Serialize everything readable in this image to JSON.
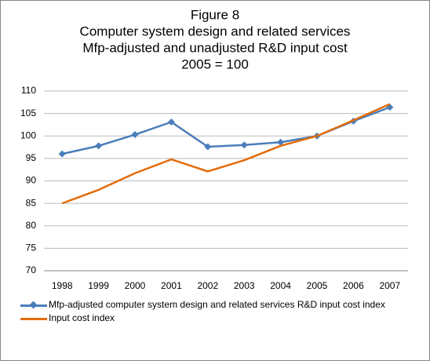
{
  "chart_data": {
    "type": "line",
    "title": [
      "Figure 8",
      "Computer system design and related services",
      "Mfp-adjusted and unadjusted R&D input cost",
      "2005 = 100"
    ],
    "categories": [
      "1998",
      "1999",
      "2000",
      "2001",
      "2002",
      "2003",
      "2004",
      "2005",
      "2006",
      "2007"
    ],
    "series": [
      {
        "name": "Mfp-adjusted computer system design and related services  R&D input cost index",
        "color": "#4a7ebb",
        "marker": "diamond",
        "values": [
          96,
          97.8,
          100.3,
          103.1,
          97.6,
          98,
          98.6,
          100,
          103.3,
          106.4
        ]
      },
      {
        "name": "Input cost index",
        "color": "#e46c0a",
        "values": [
          85,
          88,
          91.7,
          94.8,
          92.1,
          94.6,
          97.8,
          100,
          103.5,
          107.1
        ]
      }
    ],
    "ylim": [
      70,
      110
    ],
    "yticks": [
      70,
      75,
      80,
      85,
      90,
      95,
      100,
      105,
      110
    ],
    "grid": true,
    "legend": "bottom"
  }
}
